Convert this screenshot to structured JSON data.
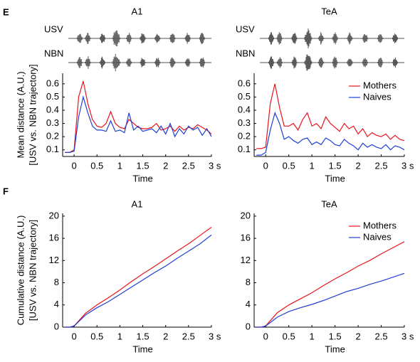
{
  "chart_data": [
    {
      "type": "line",
      "panel_label": "E",
      "title": "A1",
      "track_labels": [
        "USV",
        "NBN"
      ],
      "ylabel": [
        "Mean distance (A.U.)",
        "[USV vs. NBN trajectory]"
      ],
      "xlabel": "Time",
      "x": [
        -0.2,
        -0.1,
        0,
        0.1,
        0.2,
        0.3,
        0.4,
        0.5,
        0.6,
        0.7,
        0.8,
        0.9,
        1,
        1.1,
        1.2,
        1.3,
        1.4,
        1.5,
        1.6,
        1.7,
        1.8,
        1.9,
        2,
        2.1,
        2.2,
        2.3,
        2.4,
        2.5,
        2.6,
        2.7,
        2.8,
        2.9,
        3
      ],
      "series": [
        {
          "name": "Mothers",
          "color": "#e8141c",
          "values": [
            0.08,
            0.08,
            0.1,
            0.5,
            0.62,
            0.45,
            0.33,
            0.28,
            0.27,
            0.3,
            0.39,
            0.3,
            0.27,
            0.26,
            0.33,
            0.3,
            0.27,
            0.26,
            0.26,
            0.27,
            0.3,
            0.25,
            0.26,
            0.28,
            0.24,
            0.28,
            0.25,
            0.27,
            0.26,
            0.29,
            0.27,
            0.25,
            0.22
          ]
        },
        {
          "name": "Naives",
          "color": "#1f3fd6",
          "values": [
            0.08,
            0.08,
            0.09,
            0.35,
            0.5,
            0.38,
            0.28,
            0.25,
            0.25,
            0.24,
            0.32,
            0.24,
            0.25,
            0.23,
            0.38,
            0.25,
            0.28,
            0.24,
            0.25,
            0.26,
            0.23,
            0.28,
            0.22,
            0.3,
            0.2,
            0.26,
            0.22,
            0.28,
            0.25,
            0.27,
            0.21,
            0.26,
            0.2
          ]
        }
      ],
      "xlim": [
        -0.25,
        3
      ],
      "ylim": [
        0.05,
        0.68
      ],
      "xticks": [
        0,
        0.5,
        1,
        1.5,
        2,
        2.5,
        {
          "value": 3,
          "label": "3 s"
        }
      ],
      "yticks": [
        0.1,
        0.2,
        0.3,
        0.4,
        0.5,
        0.6
      ],
      "legend": false
    },
    {
      "type": "line",
      "title": "TeA",
      "track_labels": [
        "USV",
        "NBN"
      ],
      "xlabel": "Time",
      "x": [
        -0.2,
        -0.1,
        0,
        0.1,
        0.2,
        0.3,
        0.4,
        0.5,
        0.6,
        0.7,
        0.8,
        0.9,
        1,
        1.1,
        1.2,
        1.3,
        1.4,
        1.5,
        1.6,
        1.7,
        1.8,
        1.9,
        2,
        2.1,
        2.2,
        2.3,
        2.4,
        2.5,
        2.6,
        2.7,
        2.8,
        2.9,
        3
      ],
      "series": [
        {
          "name": "Mothers",
          "color": "#e8141c",
          "values": [
            0.11,
            0.11,
            0.12,
            0.45,
            0.6,
            0.42,
            0.28,
            0.28,
            0.3,
            0.25,
            0.33,
            0.38,
            0.28,
            0.3,
            0.26,
            0.35,
            0.3,
            0.27,
            0.24,
            0.3,
            0.26,
            0.28,
            0.22,
            0.26,
            0.2,
            0.23,
            0.21,
            0.2,
            0.22,
            0.18,
            0.21,
            0.18,
            0.17
          ]
        },
        {
          "name": "Naives",
          "color": "#1f3fd6",
          "values": [
            0.06,
            0.06,
            0.08,
            0.25,
            0.38,
            0.3,
            0.18,
            0.2,
            0.17,
            0.15,
            0.18,
            0.19,
            0.14,
            0.16,
            0.14,
            0.19,
            0.17,
            0.14,
            0.13,
            0.18,
            0.15,
            0.13,
            0.1,
            0.15,
            0.12,
            0.14,
            0.12,
            0.11,
            0.14,
            0.1,
            0.13,
            0.12,
            0.1
          ]
        }
      ],
      "xlim": [
        -0.25,
        3
      ],
      "ylim": [
        0.05,
        0.68
      ],
      "xticks": [
        0,
        0.5,
        1,
        1.5,
        2,
        2.5,
        {
          "value": 3,
          "label": "3 s"
        }
      ],
      "yticks": [
        0.1,
        0.2,
        0.3,
        0.4,
        0.5,
        0.6
      ],
      "legend": true
    },
    {
      "type": "line",
      "panel_label": "F",
      "title": "A1",
      "ylabel": [
        "Cumulative distance (A.U.)",
        "[USV vs. NBN trajectory]"
      ],
      "xlabel": "Time",
      "x": [
        -0.2,
        -0.1,
        0,
        0.25,
        0.5,
        0.75,
        1,
        1.25,
        1.5,
        1.75,
        2,
        2.25,
        2.5,
        2.75,
        3
      ],
      "series": [
        {
          "name": "Mothers",
          "color": "#e8141c",
          "values": [
            0,
            0,
            0.2,
            2.5,
            4,
            5.3,
            6.7,
            8.2,
            9.6,
            10.9,
            12.3,
            13.7,
            15,
            16.5,
            18
          ]
        },
        {
          "name": "Naives",
          "color": "#1f3fd6",
          "values": [
            0,
            0,
            0.2,
            2.2,
            3.5,
            4.6,
            5.9,
            7.2,
            8.5,
            9.8,
            11,
            12.4,
            13.7,
            15,
            16.6
          ]
        }
      ],
      "xlim": [
        -0.25,
        3
      ],
      "ylim": [
        0,
        20.5
      ],
      "xticks": [
        0,
        0.5,
        1,
        1.5,
        2,
        2.5,
        {
          "value": 3,
          "label": "3 s"
        }
      ],
      "yticks": [
        0,
        4,
        8,
        12,
        16,
        20
      ],
      "legend": false
    },
    {
      "type": "line",
      "title": "TeA",
      "xlabel": "Time",
      "x": [
        -0.2,
        -0.1,
        0,
        0.25,
        0.5,
        0.75,
        1,
        1.25,
        1.5,
        1.75,
        2,
        2.25,
        2.5,
        2.75,
        3
      ],
      "series": [
        {
          "name": "Mothers",
          "color": "#e8141c",
          "values": [
            0,
            0,
            0.2,
            2.6,
            4,
            5.1,
            6.2,
            7.5,
            8.7,
            9.8,
            11,
            12,
            13.2,
            14.3,
            15.4
          ]
        },
        {
          "name": "Naives",
          "color": "#1f3fd6",
          "values": [
            0,
            0,
            0.2,
            1.8,
            2.8,
            3.5,
            4.1,
            4.8,
            5.6,
            6.4,
            7,
            7.7,
            8.3,
            9,
            9.7
          ]
        }
      ],
      "xlim": [
        -0.25,
        3
      ],
      "ylim": [
        0,
        20.5
      ],
      "xticks": [
        0,
        0.5,
        1,
        1.5,
        2,
        2.5,
        {
          "value": 3,
          "label": "3 s"
        }
      ],
      "yticks": [
        0,
        4,
        8,
        12,
        16,
        20
      ],
      "legend": true
    }
  ]
}
